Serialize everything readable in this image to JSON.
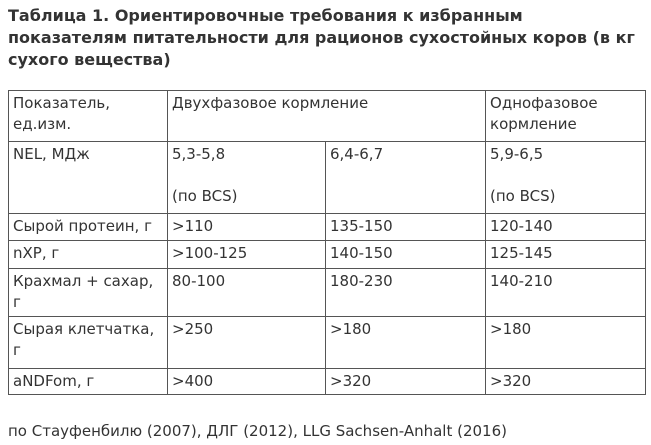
{
  "title": "Таблица 1. Ориентировочные требования к избранным\nпоказателям питательности для рационов сухостойных коров (в кг\nсухого вещества)",
  "table": {
    "header": [
      "Показатель,\nед.изм.",
      "Двухфазовое кормление",
      "Однофазовое\nкормление"
    ],
    "rows": [
      {
        "cells": [
          "NEL, МДж",
          "5,3-5,8\n\n(по BCS)",
          "6,4-6,7",
          "5,9-6,5\n\n(по BCS)"
        ]
      },
      {
        "cells": [
          "Сырой протеин, г",
          ">110",
          "135-150",
          "120-140"
        ]
      },
      {
        "cells": [
          "nXP, г",
          ">100-125",
          "140-150",
          "125-145"
        ]
      },
      {
        "cells": [
          "Крахмал + сахар,\nг",
          "80-100",
          "180-230",
          "140-210"
        ]
      },
      {
        "cells": [
          "Сырая клетчатка,\nг",
          ">250",
          ">180",
          ">180"
        ]
      },
      {
        "cells": [
          "aNDFom, г",
          ">400",
          ">320",
          ">320"
        ]
      }
    ]
  },
  "footer": "по Стауфенбилю (2007), ДЛГ (2012), LLG Sachsen-Anhalt (2016)",
  "colors": {
    "text": "#333333",
    "border": "#555555",
    "background": "#ffffff"
  }
}
